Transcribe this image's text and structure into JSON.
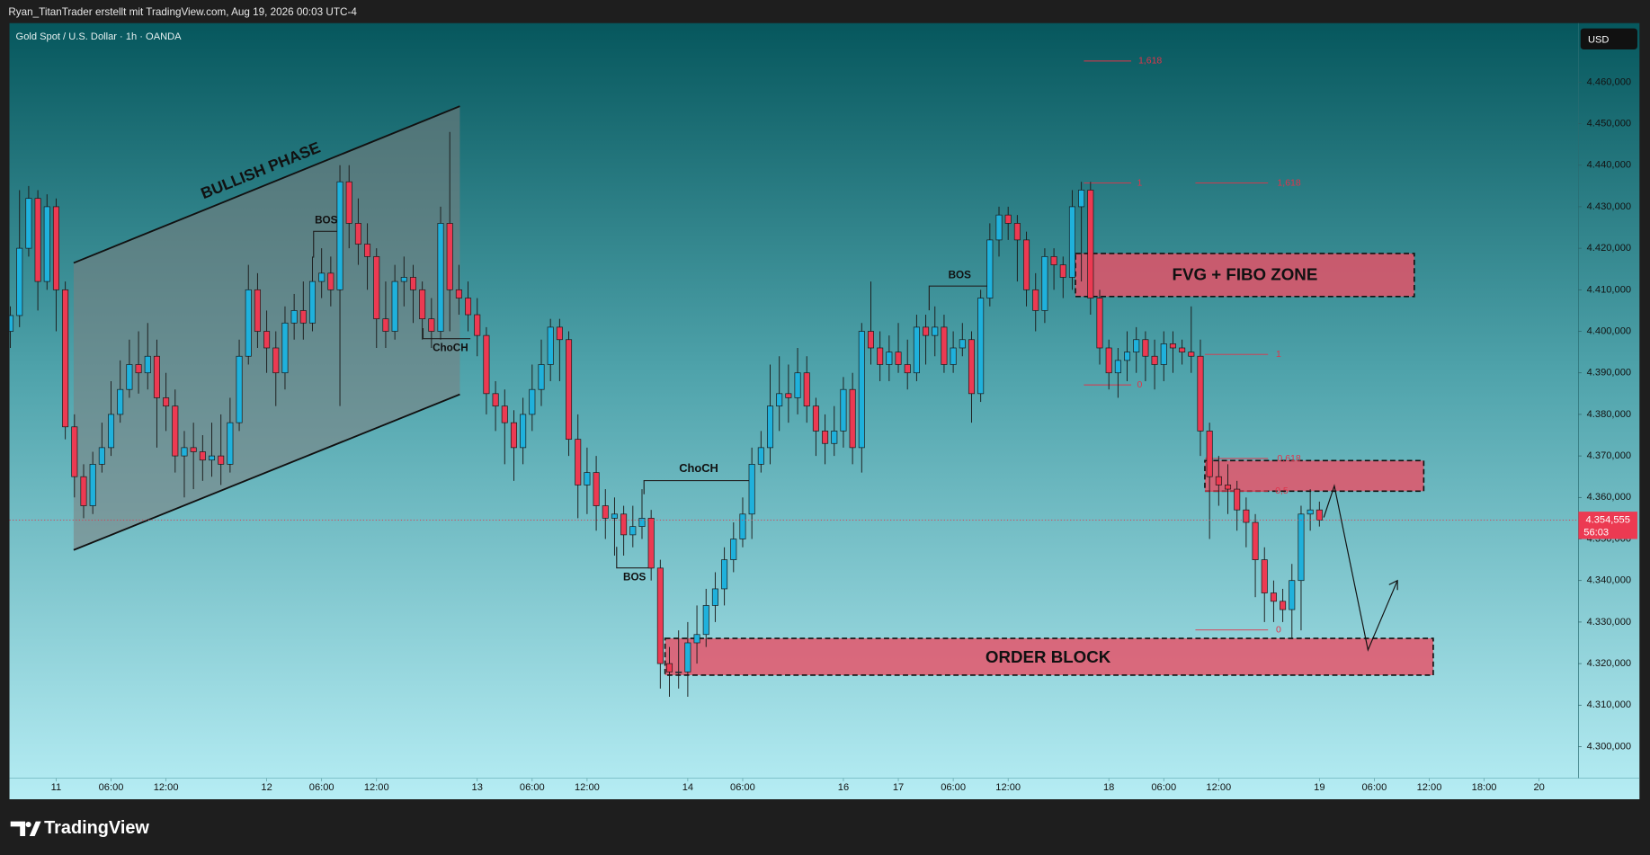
{
  "header": {
    "author_line": "Ryan_TitanTrader erstellt mit TradingView.com, Aug 19, 2026 00:03 UTC-4",
    "brand": "TradingView"
  },
  "chart_data": {
    "type": "candlestick",
    "title": "Gold Spot / U.S. Dollar · 1h · OANDA",
    "currency": "USD",
    "up_color": "#1fb1dc",
    "down_color": "#ec3a52",
    "open": [
      4400,
      4403.8,
      4420,
      4432,
      4412,
      4430,
      4410,
      4377,
      4365,
      4358,
      4368,
      4372,
      4380,
      4386,
      4392,
      4390,
      4394,
      4384,
      4382,
      4370,
      4372,
      4371,
      4369,
      4370,
      4368,
      4378,
      4394,
      4410,
      4400,
      4396,
      4390,
      4402,
      4405,
      4402,
      4412,
      4414,
      4410,
      4436,
      4426,
      4421,
      4418,
      4403,
      4400,
      4412,
      4413,
      4410,
      4403,
      4400,
      4426,
      4410,
      4408,
      4404,
      4399,
      4385,
      4382,
      4378,
      4372,
      4380,
      4386,
      4392,
      4401,
      4398,
      4374,
      4363,
      4366,
      4358,
      4355,
      4356,
      4351,
      4353,
      4355,
      4343,
      4320,
      4318,
      4318,
      4325,
      4327,
      4334,
      4338,
      4345,
      4350,
      4356,
      4368,
      4372,
      4382,
      4385,
      4384,
      4390,
      4382,
      4376,
      4373,
      4376,
      4386,
      4372,
      4400,
      4396,
      4392,
      4395,
      4392,
      4390,
      4401,
      4399,
      4401,
      4392,
      4396,
      4398,
      4385,
      4408,
      4422,
      4428,
      4426,
      4422,
      4410,
      4405,
      4418,
      4416,
      4413,
      4430,
      4434,
      4408,
      4396,
      4390,
      4393,
      4395,
      4398,
      4394,
      4392,
      4397,
      4396,
      4395,
      4394,
      4376,
      4365,
      4363,
      4362,
      4357,
      4354,
      4345,
      4337,
      4335,
      4333,
      4340,
      4356,
      4357
    ],
    "high": [
      4406,
      4434,
      4435,
      4434,
      4433,
      4432,
      4412,
      4380,
      4368,
      4371,
      4378,
      4388,
      4393,
      4398,
      4400,
      4402,
      4398,
      4390,
      4386,
      4376,
      4378,
      4375,
      4378,
      4380,
      4384,
      4398,
      4416,
      4414,
      4405,
      4400,
      4406,
      4409,
      4412,
      4418,
      4420,
      4418,
      4440,
      4440,
      4432,
      4426,
      4420,
      4412,
      4416,
      4418,
      4416,
      4412,
      4408,
      4430,
      4448,
      4416,
      4412,
      4408,
      4401,
      4388,
      4386,
      4381,
      4384,
      4392,
      4398,
      4403,
      4403,
      4400,
      4380,
      4372,
      4370,
      4362,
      4360,
      4358,
      4358,
      4362,
      4357,
      4345,
      4324,
      4328,
      4330,
      4334,
      4338,
      4342,
      4348,
      4354,
      4360,
      4372,
      4376,
      4392,
      4394,
      4392,
      4396,
      4394,
      4384,
      4380,
      4382,
      4389,
      4390,
      4402,
      4412,
      4400,
      4399,
      4402,
      4398,
      4404,
      4404,
      4406,
      4404,
      4400,
      4402,
      4400,
      4410,
      4426,
      4430,
      4430,
      4428,
      4424,
      4414,
      4420,
      4420,
      4418,
      4434,
      4436,
      4436,
      4410,
      4398,
      4396,
      4400,
      4401,
      4400,
      4398,
      4400,
      4400,
      4398,
      4406,
      4398,
      4378,
      4370,
      4368,
      4364,
      4360,
      4356,
      4348,
      4340,
      4338,
      4344,
      4358,
      4362,
      4359
    ],
    "low": [
      4396,
      4401,
      4418,
      4405,
      4410,
      4400,
      4374,
      4360,
      4355,
      4356,
      4366,
      4370,
      4378,
      4384,
      4385,
      4386,
      4372,
      4376,
      4366,
      4360,
      4362,
      4364,
      4365,
      4363,
      4366,
      4376,
      4392,
      4396,
      4390,
      4382,
      4386,
      4398,
      4398,
      4400,
      4408,
      4406,
      4382,
      4420,
      4416,
      4410,
      4396,
      4396,
      4398,
      4406,
      4402,
      4398,
      4396,
      4398,
      4400,
      4404,
      4400,
      4394,
      4380,
      4376,
      4368,
      4364,
      4368,
      4376,
      4382,
      4388,
      4388,
      4370,
      4355,
      4356,
      4352,
      4350,
      4346,
      4346,
      4348,
      4350,
      4340,
      4314,
      4312,
      4314,
      4312,
      4320,
      4324,
      4330,
      4334,
      4342,
      4348,
      4350,
      4366,
      4368,
      4376,
      4378,
      4380,
      4378,
      4370,
      4368,
      4370,
      4372,
      4368,
      4366,
      4392,
      4388,
      4388,
      4390,
      4386,
      4388,
      4392,
      4394,
      4390,
      4390,
      4394,
      4378,
      4383,
      4406,
      4418,
      4422,
      4412,
      4406,
      4400,
      4402,
      4410,
      4408,
      4410,
      4412,
      4404,
      4392,
      4386,
      4384,
      4388,
      4390,
      4388,
      4386,
      4388,
      4390,
      4392,
      4390,
      4370,
      4350,
      4358,
      4356,
      4352,
      4348,
      4336,
      4330,
      4330,
      4330,
      4326,
      4328,
      4352,
      4353
    ],
    "close": [
      4403.8,
      4420,
      4432,
      4412,
      4430,
      4410,
      4377,
      4365,
      4358,
      4368,
      4372,
      4380,
      4386,
      4392,
      4390,
      4394,
      4384,
      4382,
      4370,
      4372,
      4371,
      4369,
      4370,
      4368,
      4378,
      4394,
      4410,
      4400,
      4396,
      4390,
      4402,
      4405,
      4402,
      4412,
      4414,
      4410,
      4436,
      4426,
      4421,
      4418,
      4403,
      4400,
      4412,
      4413,
      4410,
      4403,
      4400,
      4426,
      4410,
      4408,
      4404,
      4399,
      4385,
      4382,
      4378,
      4372,
      4380,
      4386,
      4392,
      4401,
      4398,
      4374,
      4363,
      4366,
      4358,
      4355,
      4356,
      4351,
      4353,
      4355,
      4343,
      4320,
      4318,
      4318,
      4325,
      4327,
      4334,
      4338,
      4345,
      4350,
      4356,
      4368,
      4372,
      4382,
      4385,
      4384,
      4390,
      4382,
      4376,
      4373,
      4376,
      4386,
      4372,
      4400,
      4396,
      4392,
      4395,
      4392,
      4390,
      4401,
      4399,
      4401,
      4392,
      4396,
      4398,
      4385,
      4408,
      4422,
      4428,
      4426,
      4422,
      4410,
      4405,
      4418,
      4416,
      4413,
      4430,
      4434,
      4408,
      4396,
      4390,
      4393,
      4395,
      4398,
      4394,
      4392,
      4397,
      4396,
      4395,
      4394,
      4376,
      4365,
      4363,
      4362,
      4357,
      4354,
      4345,
      4337,
      4335,
      4333,
      4340,
      4356,
      4357,
      4354.555
    ],
    "xlim": [
      -0.1,
      171.3
    ],
    "xticks": [
      {
        "value": 5,
        "label": "11"
      },
      {
        "value": 11,
        "label": "06:00"
      },
      {
        "value": 17,
        "label": "12:00"
      },
      {
        "value": 28,
        "label": "12"
      },
      {
        "value": 34,
        "label": "06:00"
      },
      {
        "value": 40,
        "label": "12:00"
      },
      {
        "value": 51,
        "label": "13"
      },
      {
        "value": 57,
        "label": "06:00"
      },
      {
        "value": 63,
        "label": "12:00"
      },
      {
        "value": 74,
        "label": "14"
      },
      {
        "value": 80,
        "label": "06:00"
      },
      {
        "value": 91,
        "label": "16"
      },
      {
        "value": 97,
        "label": "17"
      },
      {
        "value": 103,
        "label": "06:00"
      },
      {
        "value": 109,
        "label": "12:00"
      },
      {
        "value": 120,
        "label": "18"
      },
      {
        "value": 126,
        "label": "06:00"
      },
      {
        "value": 132,
        "label": "12:00"
      },
      {
        "value": 143,
        "label": "19"
      },
      {
        "value": 149,
        "label": "06:00"
      },
      {
        "value": 155,
        "label": "12:00"
      },
      {
        "value": 161,
        "label": "18:00"
      },
      {
        "value": 167,
        "label": "20"
      }
    ],
    "ylim": [
      4292.4,
      4474.2
    ],
    "yticks": [
      {
        "value": 4300,
        "label": "4.300,000"
      },
      {
        "value": 4310,
        "label": "4.310,000"
      },
      {
        "value": 4320,
        "label": "4.320,000"
      },
      {
        "value": 4330,
        "label": "4.330,000"
      },
      {
        "value": 4340,
        "label": "4.340,000"
      },
      {
        "value": 4350,
        "label": "4.350,000"
      },
      {
        "value": 4360,
        "label": "4.360,000"
      },
      {
        "value": 4370,
        "label": "4.370,000"
      },
      {
        "value": 4380,
        "label": "4.380,000"
      },
      {
        "value": 4390,
        "label": "4.390,000"
      },
      {
        "value": 4400,
        "label": "4.400,000"
      },
      {
        "value": 4410,
        "label": "4.410,000"
      },
      {
        "value": 4420,
        "label": "4.420,000"
      },
      {
        "value": 4430,
        "label": "4.430,000"
      },
      {
        "value": 4440,
        "label": "4.440,000"
      },
      {
        "value": 4450,
        "label": "4.450,000"
      },
      {
        "value": 4460,
        "label": "4.460,000"
      }
    ],
    "grid": false,
    "last_price": {
      "value": 4354.555,
      "label": "4.354,555"
    },
    "countdown": "56:03",
    "annotations": [
      "BULLISH PHASE",
      "BOS",
      "ChoCH",
      "ChoCH",
      "BOS",
      "BOS",
      "FVG + FIBO ZONE",
      "ORDER BLOCK"
    ],
    "fib_labels": [
      "1,618",
      "1",
      "1,618",
      "0",
      "1",
      "0,618",
      "0,5",
      "0"
    ]
  }
}
